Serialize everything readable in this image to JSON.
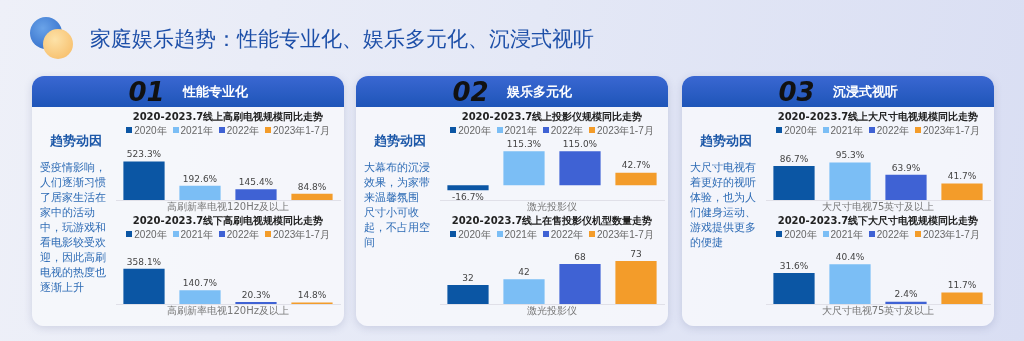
{
  "chart_data": [
    {
      "type": "other",
      "title": "家庭娱乐趋势：性能专业化、娱乐多元化、沉浸式视听"
    },
    {
      "type": "other",
      "title": "性能专业化",
      "annotations": [
        "01",
        "趋势动因",
        "受疫情影响，人们逐渐习惯了居家生活在家中的活动中，玩游戏和看电影较受欢迎，因此高刷电视的热度也逐渐上升"
      ]
    },
    {
      "type": "bar",
      "title": "2020-2023.7线上高刷电视规模同比走势",
      "xlabel": "高刷新率电视120Hz及以上",
      "tick_labels": false,
      "categories": [
        "2020年",
        "2021年",
        "2022年",
        "2023年1-7月"
      ],
      "colors": [
        "#0b56a4",
        "#7bbef5",
        "#3f62d4",
        "#f39c2a"
      ],
      "values": [
        523.3,
        192.6,
        145.4,
        84.8
      ],
      "value_labels": [
        "523.3%",
        "192.6%",
        "145.4%",
        "84.8%"
      ]
    },
    {
      "type": "bar",
      "title": "2020-2023.7线下高刷电视规模同比走势",
      "xlabel": "高刷新率电视120Hz及以上",
      "tick_labels": false,
      "categories": [
        "2020年",
        "2021年",
        "2022年",
        "2023年1-7月"
      ],
      "colors": [
        "#0b56a4",
        "#7bbef5",
        "#3f62d4",
        "#f39c2a"
      ],
      "values": [
        358.1,
        140.7,
        20.3,
        14.8
      ],
      "value_labels": [
        "358.1%",
        "140.7%",
        "20.3%",
        "14.8%"
      ]
    },
    {
      "type": "other",
      "title": "娱乐多元化",
      "annotations": [
        "02",
        "趋势动因",
        "大幕布的沉浸效果，为家带来温馨氛围",
        "尺寸小可收起，不占用空间"
      ]
    },
    {
      "type": "bar",
      "title": "2020-2023.7线上投影仪规模同比走势",
      "xlabel": "激光投影仪",
      "tick_labels": false,
      "categories": [
        "2020年",
        "2021年",
        "2022年",
        "2023年1-7月"
      ],
      "colors": [
        "#0b56a4",
        "#7bbef5",
        "#3f62d4",
        "#f39c2a"
      ],
      "values": [
        -16.7,
        115.3,
        115.0,
        42.7
      ],
      "value_labels": [
        "-16.7%",
        "115.3%",
        "115.0%",
        "42.7%"
      ]
    },
    {
      "type": "bar",
      "title": "2020-2023.7线上在售投影仪机型数量走势",
      "xlabel": "激光投影仪",
      "tick_labels": false,
      "categories": [
        "2020年",
        "2021年",
        "2022年",
        "2023年1-7月"
      ],
      "colors": [
        "#0b56a4",
        "#7bbef5",
        "#3f62d4",
        "#f39c2a"
      ],
      "values": [
        32,
        42,
        68,
        73
      ],
      "value_labels": [
        "32",
        "42",
        "68",
        "73"
      ]
    },
    {
      "type": "other",
      "title": "沉浸式视听",
      "annotations": [
        "03",
        "趋势动因",
        "大尺寸电视有着更好的视听体验，也为人们健身运动、游戏提供更多的便捷"
      ]
    },
    {
      "type": "bar",
      "title": "2020-2023.7线上大尺寸电视规模同比走势",
      "xlabel": "大尺寸电视75英寸及以上",
      "tick_labels": false,
      "categories": [
        "2020年",
        "2021年",
        "2022年",
        "2023年1-7月"
      ],
      "colors": [
        "#0b56a4",
        "#7bbef5",
        "#3f62d4",
        "#f39c2a"
      ],
      "values": [
        86.7,
        95.3,
        63.9,
        41.7
      ],
      "value_labels": [
        "86.7%",
        "95.3%",
        "63.9%",
        "41.7%"
      ]
    },
    {
      "type": "bar",
      "title": "2020-2023.7线下大尺寸电视规模同比走势",
      "xlabel": "大尺寸电视75英寸及以上",
      "tick_labels": false,
      "categories": [
        "2020年",
        "2021年",
        "2022年",
        "2023年1-7月"
      ],
      "colors": [
        "#0b56a4",
        "#7bbef5",
        "#3f62d4",
        "#f39c2a"
      ],
      "values": [
        31.6,
        40.4,
        2.4,
        11.7
      ],
      "value_labels": [
        "31.6%",
        "40.4%",
        "2.4%",
        "11.7%"
      ]
    }
  ]
}
